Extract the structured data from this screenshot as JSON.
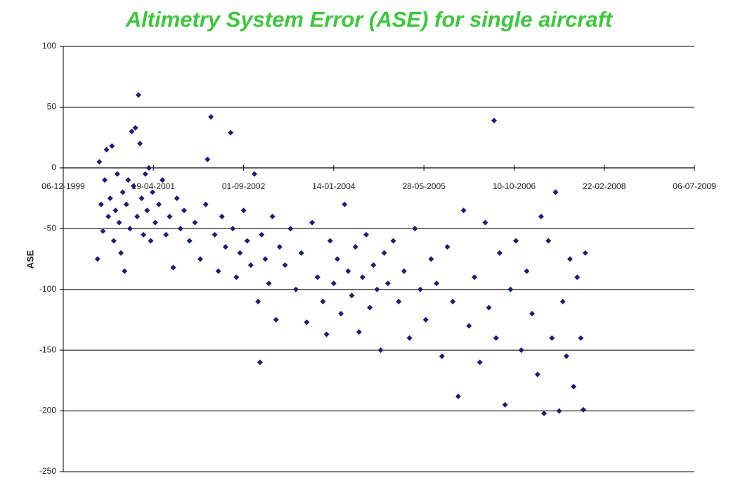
{
  "chart_data": {
    "type": "scatter",
    "title": "Altimetry System Error (ASE) for single aircraft",
    "y_label": "ASE",
    "color": "#1c1c78",
    "x": [
      36690,
      36700,
      36710,
      36720,
      36730,
      36740,
      36750,
      36760,
      36770,
      36780,
      36790,
      36800,
      36810,
      36820,
      36830,
      36840,
      36850,
      36860,
      36870,
      36880,
      36890,
      36900,
      36910,
      36917,
      36925,
      36935,
      36945,
      36955,
      36965,
      36975,
      36985,
      36995,
      37010,
      37030,
      37050,
      37070,
      37090,
      37110,
      37130,
      37150,
      37170,
      37200,
      37230,
      37260,
      37290,
      37300,
      37319,
      37340,
      37360,
      37380,
      37400,
      37428,
      37440,
      37460,
      37480,
      37500,
      37520,
      37540,
      37560,
      37580,
      37591,
      37600,
      37620,
      37640,
      37660,
      37680,
      37700,
      37730,
      37760,
      37790,
      37820,
      37850,
      37880,
      37910,
      37940,
      37960,
      37980,
      38000,
      38020,
      38040,
      38060,
      38080,
      38100,
      38120,
      38140,
      38160,
      38180,
      38200,
      38220,
      38240,
      38260,
      38280,
      38300,
      38330,
      38360,
      38390,
      38420,
      38450,
      38480,
      38510,
      38540,
      38570,
      38600,
      38630,
      38660,
      38690,
      38720,
      38750,
      38780,
      38810,
      38840,
      38860,
      38889,
      38900,
      38920,
      38950,
      38980,
      39010,
      39040,
      39070,
      39100,
      39130,
      39150,
      39166,
      39190,
      39210,
      39230,
      39250,
      39270,
      39290,
      39310,
      39330,
      39350,
      39370,
      39384,
      39395
    ],
    "values": [
      -75,
      5,
      -30,
      -52,
      -10,
      15,
      -40,
      -25,
      18,
      -60,
      -35,
      -5,
      -45,
      -70,
      -20,
      -85,
      -30,
      -10,
      -50,
      30,
      -15,
      33,
      -40,
      60,
      20,
      -25,
      -55,
      -5,
      -35,
      0,
      -60,
      -20,
      -45,
      -30,
      -10,
      -55,
      -40,
      -82,
      -25,
      -50,
      -35,
      -60,
      -45,
      -75,
      -30,
      7,
      42,
      -55,
      -85,
      -40,
      -65,
      29,
      -50,
      -90,
      -70,
      -35,
      -60,
      -80,
      -5,
      -110,
      -160,
      -55,
      -75,
      -95,
      -40,
      -125,
      -65,
      -80,
      -50,
      -100,
      -70,
      -127,
      -45,
      -90,
      -110,
      -137,
      -60,
      -95,
      -75,
      -120,
      -30,
      -85,
      -105,
      -65,
      -135,
      -90,
      -55,
      -115,
      -80,
      -100,
      -150,
      -70,
      -95,
      -60,
      -110,
      -85,
      -140,
      -50,
      -100,
      -125,
      -75,
      -95,
      -155,
      -65,
      -110,
      -188,
      -35,
      -130,
      -90,
      -160,
      -45,
      -115,
      39,
      -140,
      -70,
      -195,
      -100,
      -60,
      -150,
      -85,
      -120,
      -170,
      -40,
      -202,
      -60,
      -140,
      -20,
      -200,
      -110,
      -155,
      -75,
      -180,
      -90,
      -140,
      -199,
      -70
    ],
    "xlim": [
      36500,
      40000
    ],
    "xticks": [
      {
        "value": 36500,
        "label": "06-12-1999"
      },
      {
        "value": 37000,
        "label": "19-04-2001"
      },
      {
        "value": 37500,
        "label": "01-09-2002"
      },
      {
        "value": 38000,
        "label": "14-01-2004"
      },
      {
        "value": 38500,
        "label": "28-05-2005"
      },
      {
        "value": 39000,
        "label": "10-10-2006"
      },
      {
        "value": 39500,
        "label": "22-02-2008"
      },
      {
        "value": 40000,
        "label": "06-07-2009"
      }
    ],
    "ylim": [
      -250,
      100
    ],
    "yticks": [
      -250,
      -200,
      -150,
      -100,
      -50,
      0,
      50,
      100
    ],
    "grid": true
  }
}
